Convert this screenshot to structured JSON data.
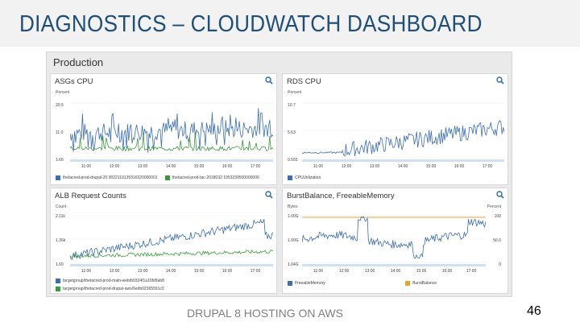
{
  "slide": {
    "title": "DIAGNOSTICS – CLOUDWATCH DASHBOARD",
    "footer": "DRUPAL 8 HOSTING ON AWS",
    "page_number": "46"
  },
  "dashboard": {
    "title": "Production"
  },
  "colors": {
    "blue": "#3b6fb0",
    "green": "#3c9a3c",
    "orange": "#f0a030",
    "title_text": "#1f4e79"
  },
  "panels": [
    {
      "id": "asg",
      "title": "ASGs CPU",
      "unit_left": "Percent",
      "yticks": [
        "20.5",
        "11.0",
        "1.66"
      ],
      "xticks": [
        "11:00",
        "12:00",
        "13:00",
        "14:00",
        "15:00",
        "16:00",
        "17:00"
      ],
      "legend": [
        {
          "label": "thetacred-prod-drupal-20 9022119135316320000001",
          "color": "#3b6fb0"
        },
        {
          "label": "thetacred-prod-tac-2018032 1953239550000000",
          "color": "#3c9a3c"
        }
      ]
    },
    {
      "id": "rds",
      "title": "RDS CPU",
      "unit_left": "Percent",
      "yticks": [
        "10.7",
        "5.63",
        "0.555"
      ],
      "xticks": [
        "11:00",
        "12:00",
        "13:00",
        "14:00",
        "15:00",
        "16:00",
        "17:00"
      ],
      "legend": [
        {
          "label": "CPUUtilization",
          "color": "#3b6fb0"
        }
      ]
    },
    {
      "id": "alb",
      "title": "ALB Request Counts",
      "unit_left": "Count",
      "yticks": [
        "2.11k",
        "1.36k",
        "1.60"
      ],
      "xticks": [
        "11:00",
        "12:00",
        "13:00",
        "14:00",
        "15:00",
        "16:00",
        "17:00"
      ],
      "legend": [
        {
          "label": "targetgroup/thetacred-prod-main-web/b0324f1a16fd9ab8",
          "color": "#3b6fb0"
        },
        {
          "label": "targetgroup/thetacred-prod-drupal-aws/6edb02365591c2",
          "color": "#3c9a3c"
        }
      ]
    },
    {
      "id": "burst",
      "title": "BurstBalance, FreeableMemory",
      "unit_left": "Bytes",
      "unit_right": "Percent",
      "yticks": [
        "1.00G",
        "1.00G",
        "1.04G"
      ],
      "yticks_right": [
        "100",
        "50.0",
        "0"
      ],
      "xticks": [
        "11:00",
        "12:00",
        "13:00",
        "14:00",
        "15:00",
        "16:00",
        "17:00"
      ],
      "legend": [
        {
          "label": "FreeableMemory",
          "color": "#3b6fb0"
        },
        {
          "label": "BurstBalance",
          "color": "#f0a030"
        }
      ]
    }
  ]
}
